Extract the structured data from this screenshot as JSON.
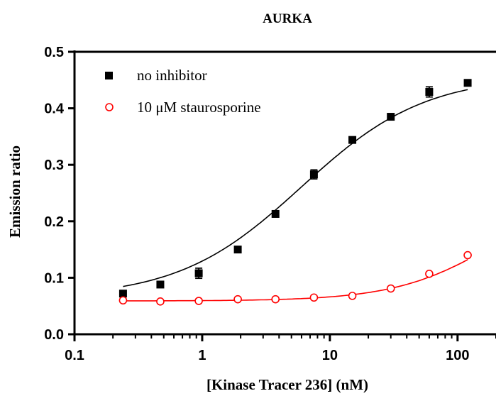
{
  "chart_data": {
    "type": "scatter",
    "title": "AURKA",
    "xlabel": "[Kinase Tracer 236] (nM)",
    "ylabel": "Emission ratio",
    "xscale": "log",
    "xlim": [
      0.1,
      200
    ],
    "ylim": [
      0.0,
      0.5
    ],
    "x_ticks": [
      0.1,
      1,
      10,
      100
    ],
    "x_tick_labels": [
      "0.1",
      "1",
      "10",
      "100"
    ],
    "y_ticks": [
      0.0,
      0.1,
      0.2,
      0.3,
      0.4,
      0.5
    ],
    "y_tick_labels": [
      "0.0",
      "0.1",
      "0.2",
      "0.3",
      "0.4",
      "0.5"
    ],
    "legend_position": "top-left",
    "series": [
      {
        "name": "no inhibitor",
        "marker": "filled-square",
        "color": "#000000",
        "x": [
          0.24,
          0.47,
          0.94,
          1.9,
          3.75,
          7.5,
          15,
          30,
          60,
          120
        ],
        "y": [
          0.072,
          0.088,
          0.108,
          0.15,
          0.213,
          0.283,
          0.344,
          0.385,
          0.429,
          0.445
        ],
        "error": [
          0.004,
          0.003,
          0.009,
          0.004,
          0.004,
          0.008,
          0.004,
          0.004,
          0.009,
          0.004
        ],
        "fit": {
          "bottom": 0.064,
          "top": 0.458,
          "ec50": 6.0,
          "hill": 0.9
        }
      },
      {
        "name": "10 μM staurosporine",
        "marker": "open-circle",
        "color": "#ff0000",
        "x": [
          0.24,
          0.47,
          0.94,
          1.9,
          3.75,
          7.5,
          15,
          30,
          60,
          120
        ],
        "y": [
          0.06,
          0.058,
          0.059,
          0.062,
          0.062,
          0.065,
          0.068,
          0.081,
          0.107,
          0.14
        ],
        "fit": {
          "bottom": 0.059,
          "top": 0.26,
          "ec50": 200,
          "hill": 1.1
        }
      }
    ]
  }
}
